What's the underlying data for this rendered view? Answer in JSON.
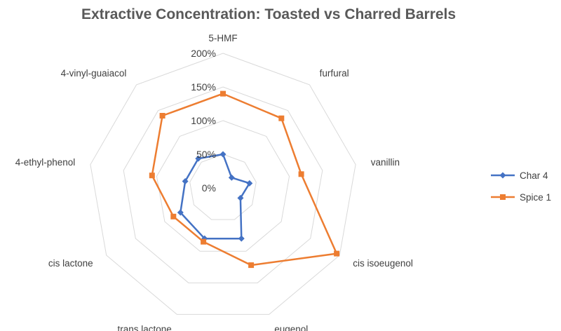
{
  "chart_data": {
    "type": "radar",
    "title": "Extractive Concentration: Toasted vs Charred Barrels",
    "categories": [
      "5-HMF",
      "furfural",
      "vanillin",
      "cis isoeugenol",
      "eugenol",
      "trans lactone",
      "cis lactone",
      "4-ethyl-phenol",
      "4-vinyl-guaiacol"
    ],
    "tick_labels": [
      "0%",
      "50%",
      "100%",
      "150%",
      "200%"
    ],
    "rlim": [
      0,
      200
    ],
    "grid": true,
    "legend_position": "right",
    "series": [
      {
        "name": "Char 4",
        "color": "#4472c4",
        "marker": "diamond",
        "values": [
          50,
          20,
          40,
          30,
          80,
          80,
          73,
          57,
          57
        ]
      },
      {
        "name": "Spice 1",
        "color": "#ed7d31",
        "marker": "square",
        "values": [
          140,
          135,
          118,
          195,
          122,
          85,
          85,
          107,
          140
        ]
      }
    ]
  }
}
